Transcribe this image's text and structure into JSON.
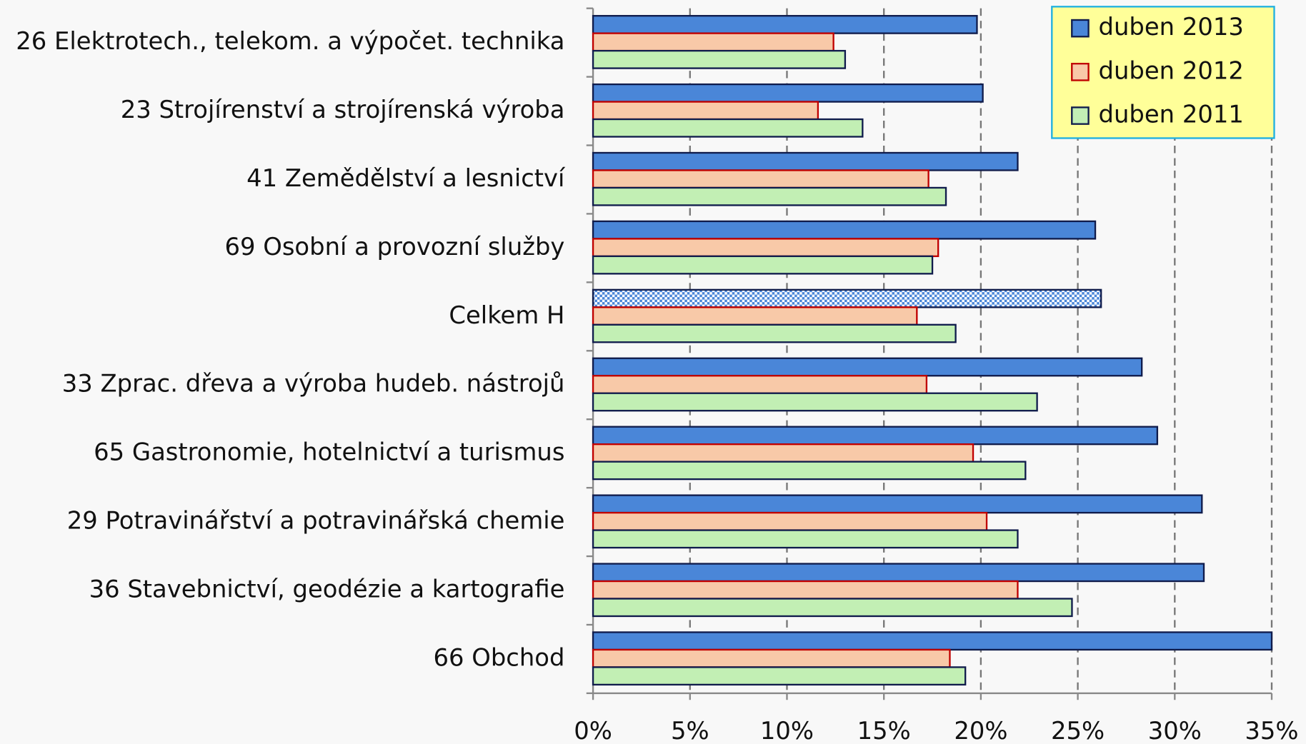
{
  "chart_data": {
    "type": "bar",
    "orientation": "horizontal",
    "categories": [
      "26 Elektrotech., telekom. a výpočet. technika",
      "23 Strojírenství a strojírenská výroba",
      "41 Zemědělství a lesnictví",
      "69 Osobní a provozní služby",
      "Celkem H",
      "33 Zprac. dřeva a výroba hudeb. nástrojů",
      "65 Gastronomie, hotelnictví a turismus",
      "29 Potravinářství a potravinářská chemie",
      "36 Stavebnictví, geodézie a kartografie",
      "66 Obchod"
    ],
    "series": [
      {
        "name": "duben 2013",
        "color": "#4a86d8",
        "edge": "#101c4c",
        "values": [
          19.8,
          20.1,
          21.9,
          25.9,
          26.2,
          28.3,
          29.1,
          31.4,
          31.5,
          35.0
        ]
      },
      {
        "name": "duben 2012",
        "color": "#f8c9a8",
        "edge": "#c00000",
        "values": [
          12.4,
          11.6,
          17.3,
          17.8,
          16.7,
          17.2,
          19.6,
          20.3,
          21.9,
          18.4
        ]
      },
      {
        "name": "duben 2011",
        "color": "#c2efb4",
        "edge": "#101c4c",
        "values": [
          13.0,
          13.9,
          18.2,
          17.5,
          18.7,
          22.9,
          22.3,
          21.9,
          24.7,
          19.2
        ]
      }
    ],
    "xlim": [
      0,
      35
    ],
    "xticks": [
      {
        "value": 0,
        "label": "0%"
      },
      {
        "value": 5,
        "label": "5%"
      },
      {
        "value": 10,
        "label": "10%"
      },
      {
        "value": 15,
        "label": "15%"
      },
      {
        "value": 20,
        "label": "20%"
      },
      {
        "value": 25,
        "label": "25%"
      },
      {
        "value": 30,
        "label": "30%"
      },
      {
        "value": 35,
        "label": "35%"
      }
    ],
    "grid": true,
    "legend": "upper right"
  }
}
